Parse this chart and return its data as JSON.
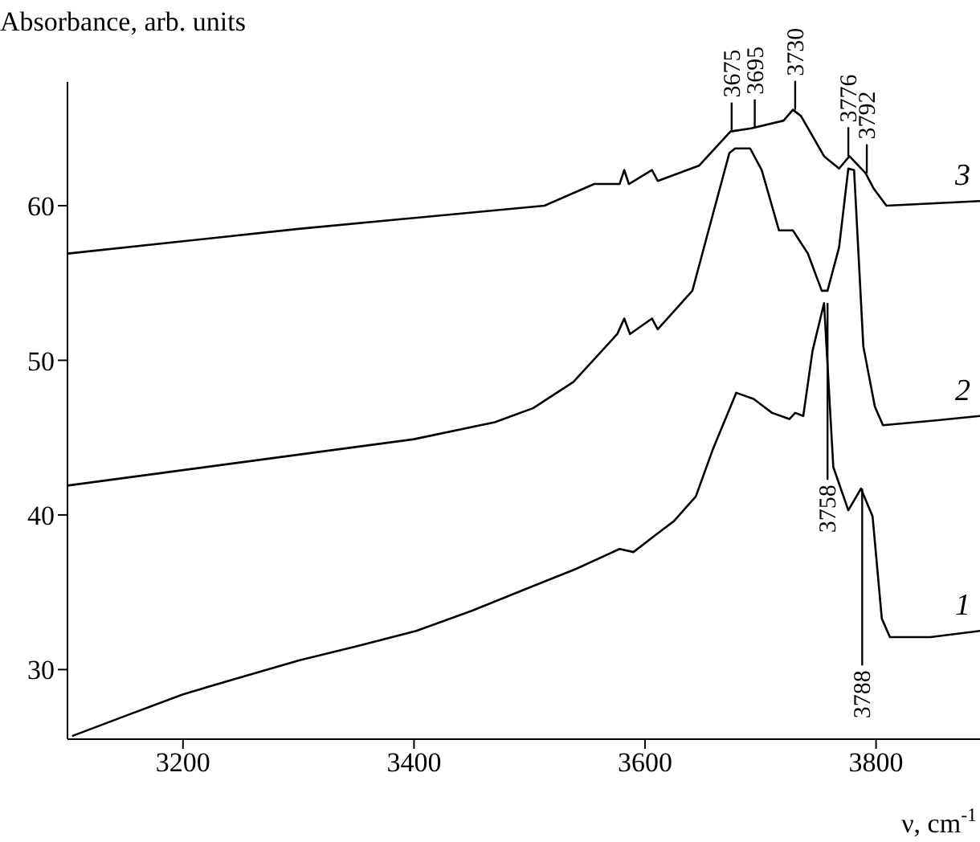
{
  "chart_data": {
    "type": "line",
    "xlabel": "ν, cm$^{-1}$",
    "ylabel": "Absorbance, arb. units",
    "xlim": [
      3100,
      3890
    ],
    "ylim": [
      25.5,
      68
    ],
    "xticks": [
      3200,
      3400,
      3600,
      3800
    ],
    "yticks": [
      30,
      40,
      50,
      60
    ],
    "grid": false,
    "legend": false,
    "marker": "none",
    "line_style": "solid",
    "series": [
      {
        "name": "1",
        "color": "#000000",
        "x": [
          3104,
          3150,
          3200,
          3250,
          3301,
          3350,
          3402,
          3450,
          3503,
          3540,
          3578,
          3590,
          3609,
          3625,
          3644,
          3659,
          3679,
          3694,
          3710,
          3725,
          3730,
          3737,
          3745,
          3755,
          3763,
          3776,
          3787,
          3797,
          3805,
          3812,
          3847,
          3890
        ],
        "values": [
          25.7,
          27.0,
          28.4,
          29.5,
          30.6,
          31.5,
          32.5,
          33.8,
          35.4,
          36.5,
          37.8,
          37.6,
          38.7,
          39.6,
          41.2,
          44.3,
          47.9,
          47.5,
          46.6,
          46.2,
          46.6,
          46.4,
          50.6,
          53.7,
          43.1,
          40.3,
          41.7,
          39.9,
          33.3,
          32.1,
          32.1,
          32.5
        ]
      },
      {
        "name": "2",
        "color": "#000000",
        "x": [
          3100,
          3200,
          3300,
          3400,
          3470,
          3503,
          3538,
          3576,
          3582,
          3587,
          3606,
          3611,
          3641,
          3655,
          3673,
          3678,
          3691,
          3701,
          3716,
          3728,
          3741,
          3753,
          3758,
          3768,
          3776,
          3781,
          3789,
          3799,
          3806,
          3850,
          3890
        ],
        "values": [
          41.9,
          42.9,
          43.9,
          44.9,
          46.0,
          46.9,
          48.6,
          51.7,
          52.7,
          51.7,
          52.7,
          52.0,
          54.5,
          58.4,
          63.4,
          63.7,
          63.7,
          62.3,
          58.4,
          58.4,
          56.9,
          54.5,
          54.5,
          57.3,
          62.4,
          62.3,
          50.9,
          47.0,
          45.8,
          46.1,
          46.4
        ]
      },
      {
        "name": "3",
        "color": "#000000",
        "x": [
          3100,
          3300,
          3513,
          3556,
          3578,
          3582,
          3586,
          3606,
          3611,
          3647,
          3674,
          3692,
          3720,
          3728,
          3735,
          3755,
          3768,
          3777,
          3791,
          3798,
          3809,
          3890
        ],
        "values": [
          56.9,
          58.5,
          60.0,
          61.4,
          61.4,
          62.3,
          61.4,
          62.3,
          61.6,
          62.6,
          64.8,
          65.0,
          65.5,
          66.2,
          65.8,
          63.2,
          62.4,
          63.2,
          62.1,
          61.1,
          60.0,
          60.3
        ]
      }
    ],
    "annotations": [
      {
        "text": "3675",
        "x": 3675,
        "y": 64.8
      },
      {
        "text": "3695",
        "x": 3695,
        "y": 65.0
      },
      {
        "text": "3730",
        "x": 3730,
        "y": 66.2
      },
      {
        "text": "3776",
        "x": 3776,
        "y": 63.2
      },
      {
        "text": "3792",
        "x": 3792,
        "y": 62.1
      },
      {
        "text": "3758",
        "x": 3758,
        "y": 53.7
      },
      {
        "text": "3788",
        "x": 3788,
        "y": 41.7
      }
    ]
  }
}
